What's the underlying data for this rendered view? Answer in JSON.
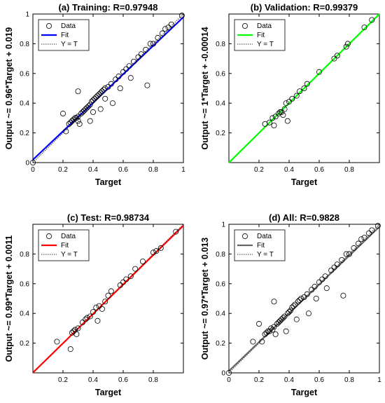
{
  "chart_data": [
    {
      "type": "scatter",
      "title": "(a)  Training: R=0.97948",
      "xlabel": "Target",
      "ylabel": "Output ~= 0.96*Target + 0.019",
      "xlim": [
        0,
        1
      ],
      "ylim": [
        0,
        1
      ],
      "xticks": [
        "0",
        "0.2",
        "0.4",
        "0.6",
        "0.8",
        "1"
      ],
      "yticks": [
        "0",
        "0.2",
        "0.4",
        "0.6",
        "0.8",
        "1"
      ],
      "fit": {
        "slope": 0.96,
        "intercept": 0.019,
        "color": "#0000ff"
      },
      "legend": [
        "Data",
        "Fit",
        "Y = T"
      ],
      "legend_position": "top-left",
      "points": [
        [
          0,
          0
        ],
        [
          0.2,
          0.33
        ],
        [
          0.22,
          0.21
        ],
        [
          0.24,
          0.26
        ],
        [
          0.25,
          0.27
        ],
        [
          0.26,
          0.28
        ],
        [
          0.27,
          0.29
        ],
        [
          0.28,
          0.3
        ],
        [
          0.29,
          0.3
        ],
        [
          0.3,
          0.31
        ],
        [
          0.3,
          0.28
        ],
        [
          0.3,
          0.48
        ],
        [
          0.31,
          0.26
        ],
        [
          0.32,
          0.33
        ],
        [
          0.33,
          0.34
        ],
        [
          0.34,
          0.35
        ],
        [
          0.35,
          0.36
        ],
        [
          0.36,
          0.37
        ],
        [
          0.37,
          0.38
        ],
        [
          0.38,
          0.39
        ],
        [
          0.38,
          0.28
        ],
        [
          0.39,
          0.41
        ],
        [
          0.4,
          0.42
        ],
        [
          0.4,
          0.34
        ],
        [
          0.41,
          0.43
        ],
        [
          0.42,
          0.44
        ],
        [
          0.43,
          0.45
        ],
        [
          0.44,
          0.46
        ],
        [
          0.45,
          0.47
        ],
        [
          0.45,
          0.36
        ],
        [
          0.46,
          0.48
        ],
        [
          0.47,
          0.49
        ],
        [
          0.48,
          0.5
        ],
        [
          0.48,
          0.43
        ],
        [
          0.5,
          0.51
        ],
        [
          0.52,
          0.53
        ],
        [
          0.53,
          0.4
        ],
        [
          0.55,
          0.56
        ],
        [
          0.57,
          0.58
        ],
        [
          0.58,
          0.5
        ],
        [
          0.6,
          0.61
        ],
        [
          0.62,
          0.63
        ],
        [
          0.64,
          0.65
        ],
        [
          0.65,
          0.57
        ],
        [
          0.67,
          0.68
        ],
        [
          0.7,
          0.71
        ],
        [
          0.72,
          0.73
        ],
        [
          0.75,
          0.76
        ],
        [
          0.76,
          0.52
        ],
        [
          0.78,
          0.8
        ],
        [
          0.8,
          0.8
        ],
        [
          0.83,
          0.84
        ],
        [
          0.86,
          0.87
        ],
        [
          0.88,
          0.9
        ],
        [
          0.9,
          0.91
        ],
        [
          0.92,
          0.93
        ],
        [
          0.99,
          0.99
        ]
      ]
    },
    {
      "type": "scatter",
      "title": "(b)  Validation: R=0.99379",
      "xlabel": "Target",
      "ylabel": "Output ~= 1*Target + -0.00014",
      "xlim": [
        0,
        1
      ],
      "ylim": [
        0,
        1
      ],
      "xticks": [
        "0.2",
        "0.4",
        "0.6",
        "0.8"
      ],
      "yticks": [
        "0.2",
        "0.4",
        "0.6",
        "0.8"
      ],
      "fit": {
        "slope": 1.0,
        "intercept": -0.00014,
        "color": "#00ff00"
      },
      "legend": [
        "Data",
        "Fit",
        "Y = T"
      ],
      "legend_position": "top-left",
      "points": [
        [
          0.24,
          0.26
        ],
        [
          0.27,
          0.27
        ],
        [
          0.29,
          0.3
        ],
        [
          0.3,
          0.25
        ],
        [
          0.31,
          0.31
        ],
        [
          0.33,
          0.33
        ],
        [
          0.34,
          0.34
        ],
        [
          0.35,
          0.34
        ],
        [
          0.36,
          0.32
        ],
        [
          0.37,
          0.36
        ],
        [
          0.38,
          0.4
        ],
        [
          0.39,
          0.28
        ],
        [
          0.4,
          0.41
        ],
        [
          0.42,
          0.43
        ],
        [
          0.45,
          0.45
        ],
        [
          0.47,
          0.48
        ],
        [
          0.5,
          0.5
        ],
        [
          0.52,
          0.53
        ],
        [
          0.6,
          0.61
        ],
        [
          0.7,
          0.7
        ],
        [
          0.72,
          0.72
        ],
        [
          0.78,
          0.78
        ],
        [
          0.79,
          0.8
        ],
        [
          0.9,
          0.91
        ],
        [
          0.95,
          0.96
        ]
      ]
    },
    {
      "type": "scatter",
      "title": "(c)  Test: R=0.98734",
      "xlabel": "Target",
      "ylabel": "Output ~= 0.99*Target + 0.0011",
      "xlim": [
        0,
        1
      ],
      "ylim": [
        0,
        1
      ],
      "xticks": [
        "0.2",
        "0.4",
        "0.6",
        "0.8"
      ],
      "yticks": [
        "0.2",
        "0.4",
        "0.6",
        "0.8"
      ],
      "fit": {
        "slope": 0.99,
        "intercept": 0.0011,
        "color": "#ff0000"
      },
      "legend": [
        "Data",
        "Fit",
        "Y = T"
      ],
      "legend_position": "top-left",
      "points": [
        [
          0.16,
          0.21
        ],
        [
          0.25,
          0.16
        ],
        [
          0.26,
          0.27
        ],
        [
          0.27,
          0.28
        ],
        [
          0.28,
          0.29
        ],
        [
          0.29,
          0.26
        ],
        [
          0.3,
          0.3
        ],
        [
          0.33,
          0.34
        ],
        [
          0.35,
          0.36
        ],
        [
          0.36,
          0.37
        ],
        [
          0.38,
          0.38
        ],
        [
          0.4,
          0.41
        ],
        [
          0.42,
          0.44
        ],
        [
          0.43,
          0.35
        ],
        [
          0.44,
          0.45
        ],
        [
          0.46,
          0.43
        ],
        [
          0.48,
          0.48
        ],
        [
          0.5,
          0.52
        ],
        [
          0.52,
          0.55
        ],
        [
          0.58,
          0.59
        ],
        [
          0.6,
          0.61
        ],
        [
          0.62,
          0.63
        ],
        [
          0.65,
          0.65
        ],
        [
          0.68,
          0.7
        ],
        [
          0.73,
          0.75
        ],
        [
          0.8,
          0.81
        ],
        [
          0.82,
          0.82
        ],
        [
          0.85,
          0.84
        ],
        [
          0.95,
          0.95
        ]
      ]
    },
    {
      "type": "scatter",
      "title": "(d)  All: R=0.9828",
      "xlabel": "Target",
      "ylabel": "Output ~= 0.97*Target + 0.013",
      "xlim": [
        0,
        1
      ],
      "ylim": [
        0,
        1
      ],
      "xticks": [
        "0",
        "0.2",
        "0.4",
        "0.6",
        "0.8",
        "1"
      ],
      "yticks": [
        "0",
        "0.2",
        "0.4",
        "0.6",
        "0.8",
        "1"
      ],
      "fit": {
        "slope": 0.97,
        "intercept": 0.013,
        "color": "#666666"
      },
      "legend": [
        "Data",
        "Fit",
        "Y = T"
      ],
      "legend_position": "top-left",
      "points": [
        [
          0,
          0
        ],
        [
          0.16,
          0.21
        ],
        [
          0.2,
          0.33
        ],
        [
          0.22,
          0.21
        ],
        [
          0.24,
          0.26
        ],
        [
          0.25,
          0.27
        ],
        [
          0.26,
          0.28
        ],
        [
          0.27,
          0.28
        ],
        [
          0.28,
          0.3
        ],
        [
          0.29,
          0.29
        ],
        [
          0.3,
          0.31
        ],
        [
          0.3,
          0.48
        ],
        [
          0.31,
          0.26
        ],
        [
          0.32,
          0.33
        ],
        [
          0.33,
          0.34
        ],
        [
          0.34,
          0.35
        ],
        [
          0.35,
          0.36
        ],
        [
          0.36,
          0.37
        ],
        [
          0.37,
          0.38
        ],
        [
          0.38,
          0.28
        ],
        [
          0.39,
          0.4
        ],
        [
          0.4,
          0.41
        ],
        [
          0.41,
          0.42
        ],
        [
          0.42,
          0.44
        ],
        [
          0.43,
          0.45
        ],
        [
          0.44,
          0.46
        ],
        [
          0.45,
          0.36
        ],
        [
          0.46,
          0.48
        ],
        [
          0.47,
          0.49
        ],
        [
          0.48,
          0.5
        ],
        [
          0.5,
          0.51
        ],
        [
          0.52,
          0.53
        ],
        [
          0.53,
          0.4
        ],
        [
          0.55,
          0.56
        ],
        [
          0.57,
          0.58
        ],
        [
          0.58,
          0.5
        ],
        [
          0.6,
          0.61
        ],
        [
          0.62,
          0.63
        ],
        [
          0.64,
          0.65
        ],
        [
          0.65,
          0.57
        ],
        [
          0.68,
          0.69
        ],
        [
          0.7,
          0.71
        ],
        [
          0.72,
          0.73
        ],
        [
          0.75,
          0.76
        ],
        [
          0.76,
          0.52
        ],
        [
          0.78,
          0.8
        ],
        [
          0.8,
          0.8
        ],
        [
          0.83,
          0.84
        ],
        [
          0.86,
          0.87
        ],
        [
          0.88,
          0.9
        ],
        [
          0.9,
          0.91
        ],
        [
          0.93,
          0.94
        ],
        [
          0.95,
          0.96
        ],
        [
          0.99,
          0.99
        ]
      ]
    }
  ]
}
